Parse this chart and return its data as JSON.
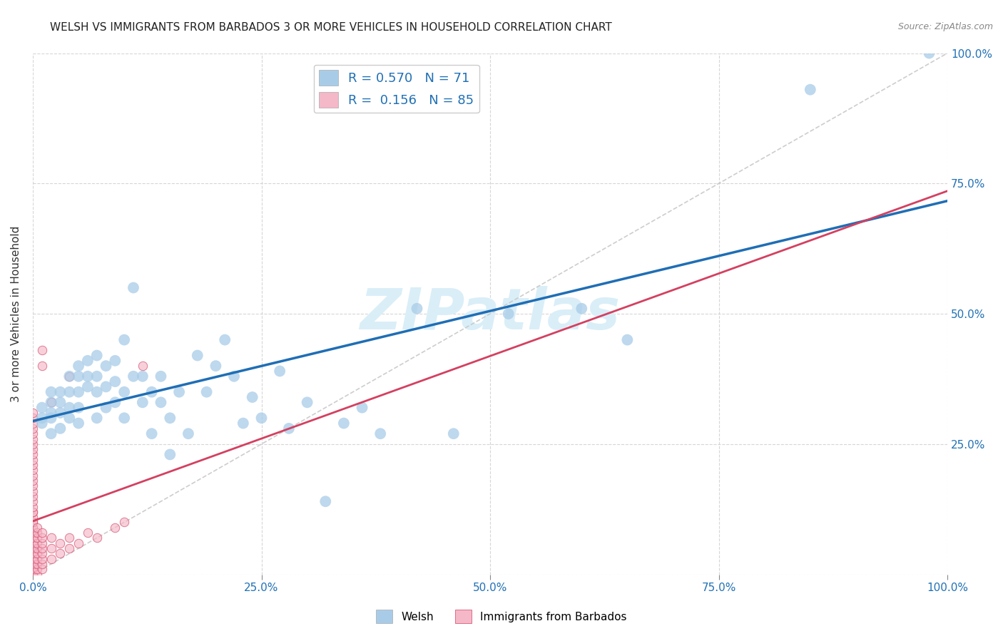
{
  "title": "WELSH VS IMMIGRANTS FROM BARBADOS 3 OR MORE VEHICLES IN HOUSEHOLD CORRELATION CHART",
  "source": "Source: ZipAtlas.com",
  "ylabel": "3 or more Vehicles in Household",
  "watermark": "ZIPatlas",
  "legend_welsh_R": "0.570",
  "legend_welsh_N": "71",
  "legend_barbados_R": "0.156",
  "legend_barbados_N": "85",
  "blue_color": "#a8cce8",
  "blue_line_color": "#1f6eb5",
  "pink_color": "#f4b8c8",
  "pink_line_color": "#d44060",
  "welsh_scatter_x": [
    0.01,
    0.01,
    0.01,
    0.02,
    0.02,
    0.02,
    0.02,
    0.02,
    0.03,
    0.03,
    0.03,
    0.03,
    0.04,
    0.04,
    0.04,
    0.04,
    0.05,
    0.05,
    0.05,
    0.05,
    0.05,
    0.06,
    0.06,
    0.06,
    0.07,
    0.07,
    0.07,
    0.07,
    0.08,
    0.08,
    0.08,
    0.09,
    0.09,
    0.09,
    0.1,
    0.1,
    0.1,
    0.11,
    0.11,
    0.12,
    0.12,
    0.13,
    0.13,
    0.14,
    0.14,
    0.15,
    0.15,
    0.16,
    0.17,
    0.18,
    0.19,
    0.2,
    0.21,
    0.22,
    0.23,
    0.24,
    0.25,
    0.27,
    0.28,
    0.3,
    0.32,
    0.34,
    0.36,
    0.38,
    0.42,
    0.46,
    0.52,
    0.6,
    0.65,
    0.85,
    0.98
  ],
  "welsh_scatter_y": [
    0.29,
    0.3,
    0.32,
    0.27,
    0.3,
    0.31,
    0.33,
    0.35,
    0.28,
    0.31,
    0.33,
    0.35,
    0.3,
    0.32,
    0.35,
    0.38,
    0.29,
    0.32,
    0.35,
    0.38,
    0.4,
    0.36,
    0.38,
    0.41,
    0.3,
    0.35,
    0.38,
    0.42,
    0.32,
    0.36,
    0.4,
    0.33,
    0.37,
    0.41,
    0.3,
    0.35,
    0.45,
    0.38,
    0.55,
    0.33,
    0.38,
    0.27,
    0.35,
    0.33,
    0.38,
    0.23,
    0.3,
    0.35,
    0.27,
    0.42,
    0.35,
    0.4,
    0.45,
    0.38,
    0.29,
    0.34,
    0.3,
    0.39,
    0.28,
    0.33,
    0.14,
    0.29,
    0.32,
    0.27,
    0.51,
    0.27,
    0.5,
    0.51,
    0.45,
    0.93,
    1.0
  ],
  "barbados_scatter_x": [
    0.0,
    0.0,
    0.0,
    0.0,
    0.0,
    0.0,
    0.0,
    0.0,
    0.0,
    0.0,
    0.0,
    0.0,
    0.0,
    0.0,
    0.0,
    0.0,
    0.0,
    0.0,
    0.0,
    0.0,
    0.0,
    0.0,
    0.0,
    0.0,
    0.0,
    0.0,
    0.0,
    0.0,
    0.0,
    0.0,
    0.0,
    0.0,
    0.0,
    0.0,
    0.0,
    0.0,
    0.0,
    0.0,
    0.0,
    0.0,
    0.0,
    0.0,
    0.0,
    0.0,
    0.0,
    0.0,
    0.0,
    0.0,
    0.0,
    0.0,
    0.005,
    0.005,
    0.005,
    0.005,
    0.005,
    0.005,
    0.005,
    0.005,
    0.005,
    0.005,
    0.01,
    0.01,
    0.01,
    0.01,
    0.01,
    0.01,
    0.01,
    0.01,
    0.02,
    0.02,
    0.02,
    0.03,
    0.03,
    0.04,
    0.04,
    0.05,
    0.06,
    0.07,
    0.09,
    0.1,
    0.12,
    0.04,
    0.02,
    0.01,
    0.01
  ],
  "barbados_scatter_y": [
    0.0,
    0.0,
    0.0,
    0.0,
    0.01,
    0.01,
    0.01,
    0.02,
    0.02,
    0.02,
    0.03,
    0.03,
    0.03,
    0.04,
    0.04,
    0.05,
    0.05,
    0.05,
    0.06,
    0.06,
    0.07,
    0.07,
    0.08,
    0.08,
    0.09,
    0.09,
    0.1,
    0.1,
    0.11,
    0.12,
    0.12,
    0.13,
    0.14,
    0.15,
    0.16,
    0.17,
    0.18,
    0.19,
    0.2,
    0.21,
    0.22,
    0.23,
    0.24,
    0.25,
    0.26,
    0.27,
    0.28,
    0.29,
    0.3,
    0.31,
    0.0,
    0.01,
    0.02,
    0.03,
    0.04,
    0.05,
    0.06,
    0.07,
    0.08,
    0.09,
    0.01,
    0.02,
    0.03,
    0.04,
    0.05,
    0.06,
    0.07,
    0.08,
    0.03,
    0.05,
    0.07,
    0.04,
    0.06,
    0.05,
    0.07,
    0.06,
    0.08,
    0.07,
    0.09,
    0.1,
    0.4,
    0.38,
    0.33,
    0.4,
    0.43
  ],
  "xlim": [
    0.0,
    1.0
  ],
  "ylim": [
    0.0,
    1.0
  ],
  "title_fontsize": 11,
  "axis_label_color": "#2171b5",
  "background_color": "#ffffff",
  "watermark_color": "#daeef8"
}
